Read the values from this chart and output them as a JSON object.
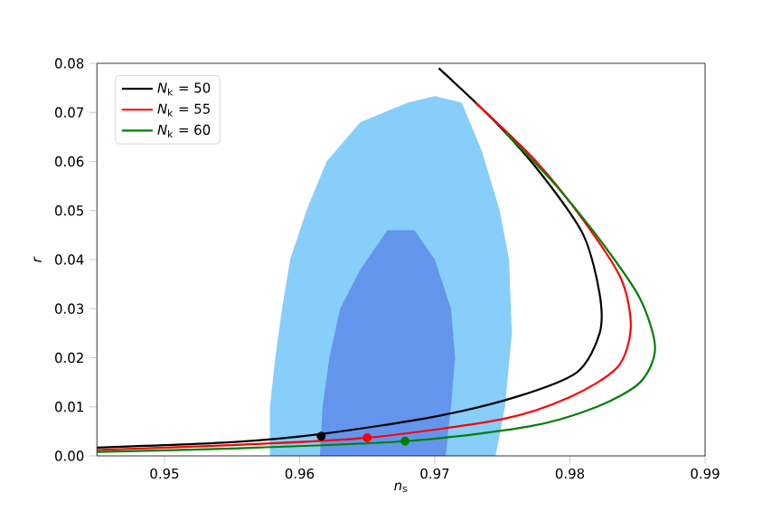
{
  "chart_data": {
    "type": "line",
    "xlabel": "*n*$_{s}$",
    "ylabel": "*r*",
    "xlim": [
      0.945,
      0.99
    ],
    "ylim": [
      0,
      0.08
    ],
    "xticks": [
      0.95,
      0.96,
      0.97,
      0.98,
      0.99
    ],
    "yticks": [
      {
        "value": 0,
        "label": "0.00"
      },
      {
        "value": 0.01,
        "label": "0.01"
      },
      {
        "value": 0.02,
        "label": "0.02"
      },
      {
        "value": 0.03,
        "label": "0.03"
      },
      {
        "value": 0.04,
        "label": "0.04"
      },
      {
        "value": 0.05,
        "label": "0.05"
      },
      {
        "value": 0.06,
        "label": "0.06"
      },
      {
        "value": 0.07,
        "label": "0.07"
      },
      {
        "value": 0.08,
        "label": "0.08"
      }
    ],
    "grid": false,
    "legend": "top left",
    "marker": "none",
    "line_style": "solid",
    "series": [
      {
        "type": "area",
        "color": "#87cefa",
        "x": [
          0.9578,
          0.9578,
          0.9582,
          0.9587,
          0.9593,
          0.9605,
          0.962,
          0.9645,
          0.968,
          0.97,
          0.972,
          0.9735,
          0.9748,
          0.9755,
          0.9757,
          0.9752,
          0.9745
        ],
        "values": [
          0,
          0.01,
          0.02,
          0.03,
          0.04,
          0.05,
          0.06,
          0.068,
          0.072,
          0.0733,
          0.072,
          0.062,
          0.05,
          0.04,
          0.025,
          0.01,
          0
        ]
      },
      {
        "type": "area",
        "color": "#6495ed",
        "x": [
          0.9615,
          0.9617,
          0.9622,
          0.963,
          0.9645,
          0.9665,
          0.9685,
          0.97,
          0.9712,
          0.9715,
          0.9712,
          0.9708
        ],
        "values": [
          0,
          0.01,
          0.02,
          0.03,
          0.038,
          0.046,
          0.046,
          0.04,
          0.03,
          0.02,
          0.01,
          0
        ]
      },
      {
        "name": "*N*$_{k}$ = 50",
        "color": "#000000",
        "x": [
          0.9703,
          0.9745,
          0.978,
          0.981,
          0.9822,
          0.9822,
          0.9805,
          0.976,
          0.97,
          0.9617,
          0.955,
          0.945
        ],
        "values": [
          0.079,
          0.068,
          0.057,
          0.045,
          0.033,
          0.025,
          0.017,
          0.012,
          0.008,
          0.0045,
          0.0028,
          0.0017
        ]
      },
      {
        "name": "*N*$_{k}$ = 55",
        "color": "#ff0000",
        "x": [
          0.973,
          0.9775,
          0.981,
          0.9838,
          0.9845,
          0.9835,
          0.98,
          0.975,
          0.965,
          0.955,
          0.945
        ],
        "values": [
          0.072,
          0.06,
          0.048,
          0.036,
          0.026,
          0.018,
          0.012,
          0.0075,
          0.0037,
          0.0022,
          0.0012
        ]
      },
      {
        "name": "*N*$_{k}$ = 60",
        "color": "#008000",
        "x": [
          0.9752,
          0.979,
          0.9825,
          0.9852,
          0.9863,
          0.9852,
          0.982,
          0.977,
          0.9678,
          0.955,
          0.945
        ],
        "values": [
          0.066,
          0.055,
          0.043,
          0.032,
          0.022,
          0.015,
          0.01,
          0.006,
          0.003,
          0.0015,
          0.0008
        ]
      },
      {
        "type": "scatter",
        "marker": "circle",
        "color": "#000000",
        "x": [
          0.9616
        ],
        "values": [
          0.004
        ]
      },
      {
        "type": "scatter",
        "marker": "circle",
        "color": "#ff0000",
        "x": [
          0.965
        ],
        "values": [
          0.0037
        ]
      },
      {
        "type": "scatter",
        "marker": "circle",
        "color": "#008000",
        "x": [
          0.9678
        ],
        "values": [
          0.003
        ]
      }
    ]
  }
}
